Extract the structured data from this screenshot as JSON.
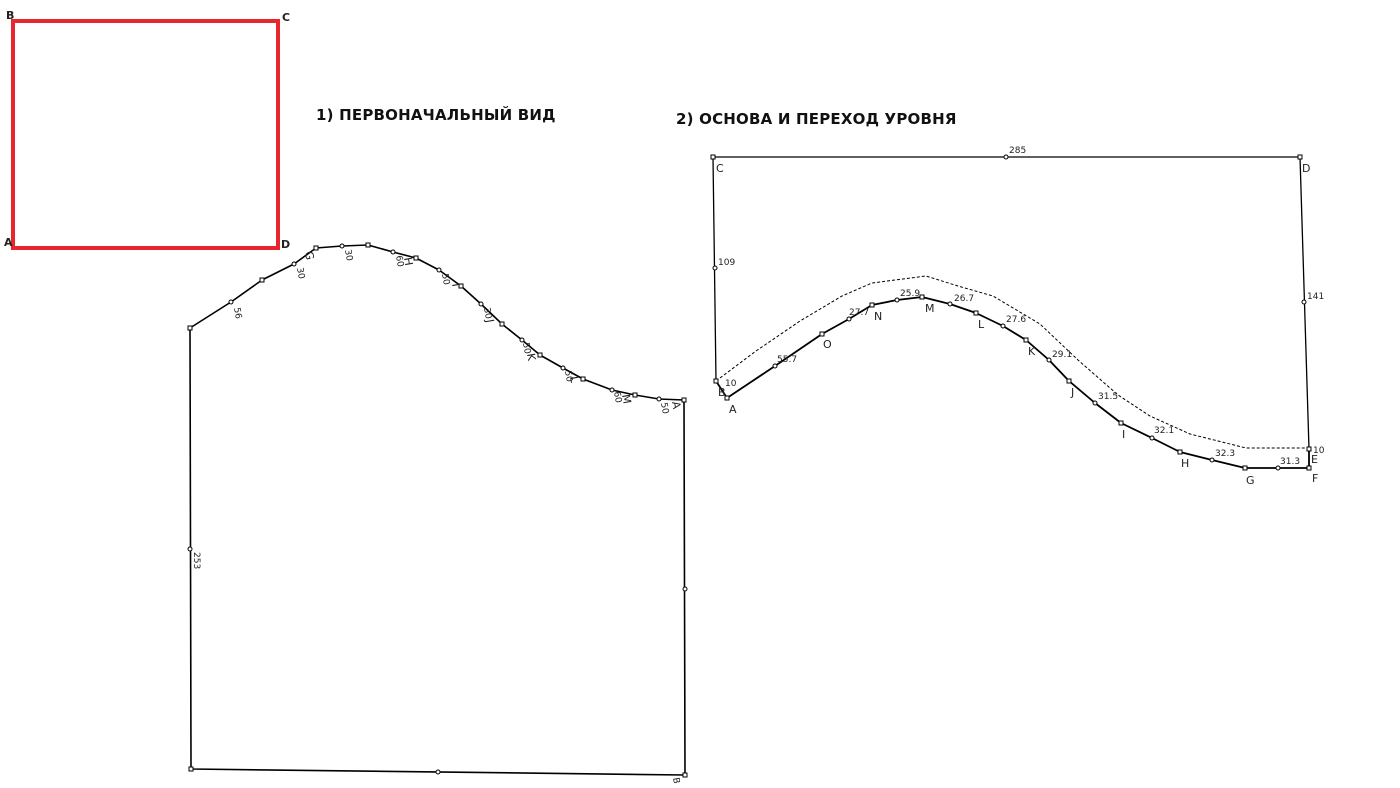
{
  "captions": {
    "first": "1) ПЕРВОНАЧАЛЬНЫЙ ВИД",
    "second": "2) ОСНОВА И ПЕРЕХОД УРОВНЯ"
  },
  "red_square": {
    "corners": {
      "top_left": "B",
      "top_right": "C",
      "bottom_left": "A",
      "bottom_right": "D"
    },
    "stroke_color": "#e8262d"
  },
  "original_view": {
    "left_edge_label": "253",
    "curve_point_labels": [
      "G",
      "H",
      "I",
      "J",
      "K",
      "L",
      "M",
      "A"
    ],
    "curve_measurements": [
      "56",
      "30",
      "30",
      "60",
      "50",
      "30",
      "50",
      "50",
      "60",
      "50"
    ],
    "bottom_right_label": "B"
  },
  "base_view": {
    "corner_labels": {
      "top_left": "C",
      "top_right": "D",
      "bottom_left": "B",
      "bottom_right": "F"
    },
    "top_length": "285",
    "left_height": "109",
    "right_height": "141",
    "left_offset": "10",
    "right_offset": "10",
    "right_offset_point": "E",
    "curve_points": [
      "A",
      "O",
      "N",
      "M",
      "L",
      "K",
      "J",
      "I",
      "H",
      "G"
    ],
    "segment_lengths": [
      "55.7",
      "27.7",
      "25.9",
      "26.7",
      "27.6",
      "29.1",
      "31.5",
      "32.1",
      "32.3",
      "31.3"
    ]
  }
}
